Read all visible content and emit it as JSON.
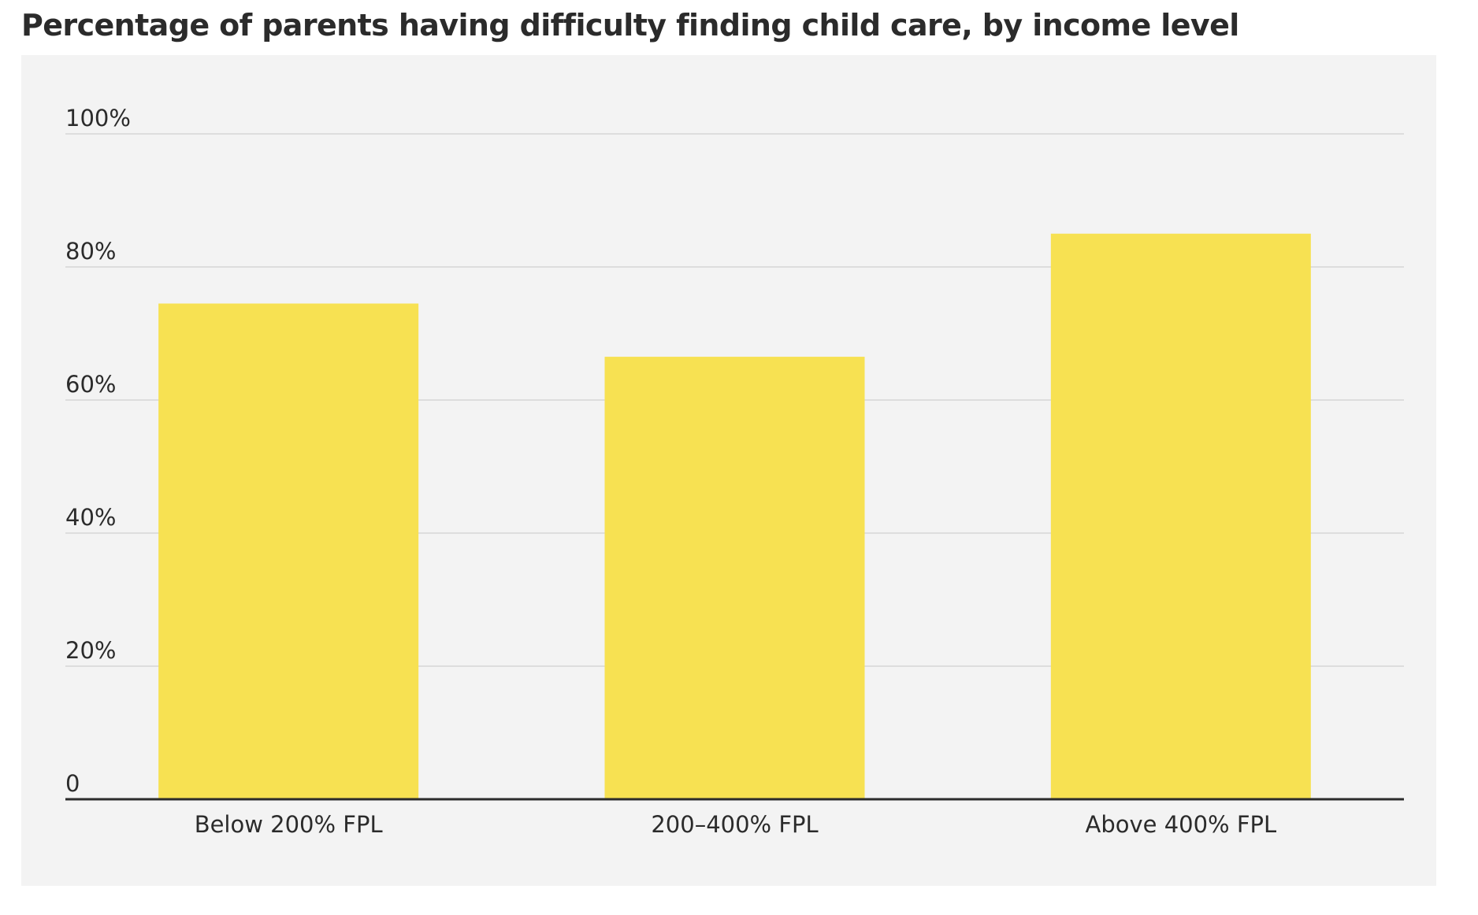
{
  "title": "Percentage of parents having difficulty finding child care, by income level",
  "colors": {
    "bar": "#f7e152",
    "background": "#f3f3f3",
    "gridline": "#dddddd",
    "baseline": "#2b2b2b",
    "text": "#2b2b2b"
  },
  "chart_data": {
    "type": "bar",
    "title": "Percentage of parents having difficulty finding child care, by income level",
    "xlabel": "",
    "ylabel": "",
    "categories": [
      "Below 200% FPL",
      "200–400% FPL",
      "Above 400% FPL"
    ],
    "values": [
      74.5,
      66.5,
      85
    ],
    "ylim": [
      0,
      100
    ],
    "yticks": [
      0,
      20,
      40,
      60,
      80,
      100
    ],
    "ytick_labels": [
      "0",
      "20%",
      "40%",
      "60%",
      "80%",
      "100%"
    ],
    "grid": true,
    "legend": "none"
  }
}
